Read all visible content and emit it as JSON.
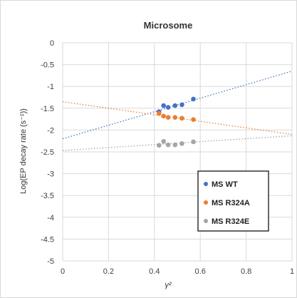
{
  "chart_data": {
    "type": "scatter",
    "title": "Microsome",
    "xlabel": "γ²",
    "ylabel": "Log(EP decay rate (s⁻¹))",
    "xlim": [
      0,
      1
    ],
    "ylim": [
      -5,
      0
    ],
    "x_ticks": [
      "0",
      "0.2",
      "0.4",
      "0.6",
      "0.8",
      "1"
    ],
    "y_ticks": [
      "0",
      "-0.5",
      "-1",
      "-1.5",
      "-2",
      "-2.5",
      "-3",
      "-3.5",
      "-4",
      "-4.5",
      "-5"
    ],
    "grid": true,
    "legend_position": "bottom-right",
    "series": [
      {
        "name": "MS WT",
        "color": "#4472C4",
        "points": [
          [
            0.42,
            -1.58
          ],
          [
            0.44,
            -1.44
          ],
          [
            0.46,
            -1.48
          ],
          [
            0.49,
            -1.44
          ],
          [
            0.52,
            -1.42
          ],
          [
            0.57,
            -1.29
          ]
        ],
        "trendline": [
          [
            0,
            -2.2
          ],
          [
            1,
            -0.65
          ]
        ]
      },
      {
        "name": "MS R324A",
        "color": "#ED7D31",
        "points": [
          [
            0.42,
            -1.62
          ],
          [
            0.44,
            -1.68
          ],
          [
            0.46,
            -1.71
          ],
          [
            0.49,
            -1.71
          ],
          [
            0.52,
            -1.73
          ],
          [
            0.57,
            -1.76
          ]
        ],
        "trendline": [
          [
            0,
            -1.35
          ],
          [
            1,
            -2.1
          ]
        ]
      },
      {
        "name": "MS R324E",
        "color": "#A5A5A5",
        "points": [
          [
            0.42,
            -2.35
          ],
          [
            0.44,
            -2.26
          ],
          [
            0.46,
            -2.34
          ],
          [
            0.49,
            -2.34
          ],
          [
            0.52,
            -2.31
          ],
          [
            0.57,
            -2.27
          ]
        ],
        "trendline": [
          [
            0,
            -2.47
          ],
          [
            1,
            -2.13
          ]
        ]
      }
    ]
  }
}
